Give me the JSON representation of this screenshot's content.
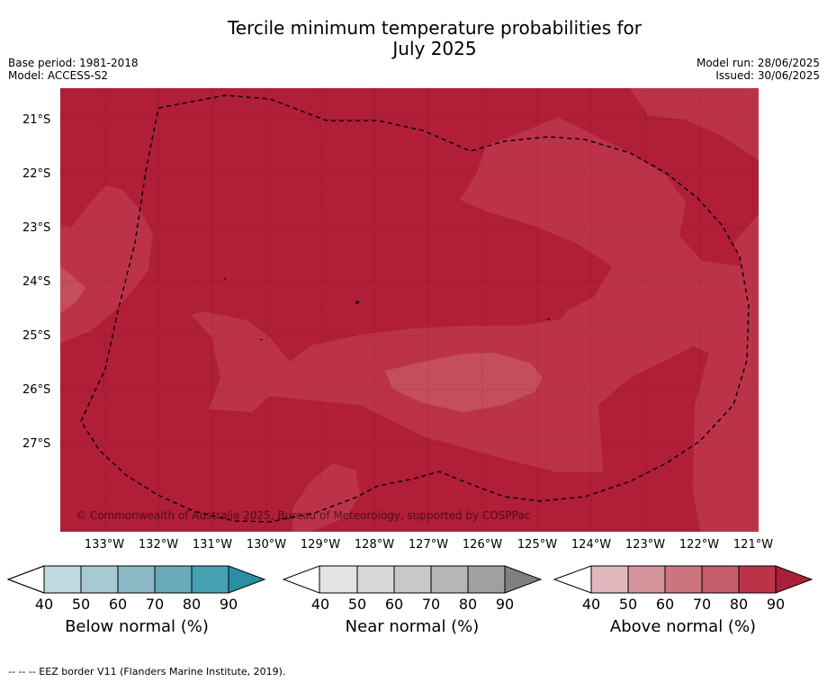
{
  "title_line1": "Tercile minimum temperature probabilities for",
  "title_line2": "July 2025",
  "base_period": "Base period: 1981-2018",
  "model": "Model: ACCESS-S2",
  "model_run": "Model run: 28/06/2025",
  "issued": "Issued: 30/06/2025",
  "map": {
    "latitude_labels": [
      "21°S",
      "22°S",
      "23°S",
      "24°S",
      "25°S",
      "26°S",
      "27°S"
    ],
    "longitude_labels": [
      "133°W",
      "132°W",
      "131°W",
      "130°W",
      "129°W",
      "128°W",
      "127°W",
      "126°W",
      "125°W",
      "124°W",
      "123°W",
      "122°W",
      "121°W"
    ],
    "copyright": "© Commonwealth of Australia 2025, Bureau of Meteorology, supported by COSPPac",
    "colors": {
      "above_80_90": "#b01e37",
      "above_70_80": "#bc3349",
      "above_60_70": "#c44d5e"
    }
  },
  "colorbars": [
    {
      "title": "Below normal (%)",
      "ticks": [
        "40",
        "50",
        "60",
        "70",
        "80",
        "90"
      ],
      "colors": [
        "#c0d8de",
        "#a7c9d1",
        "#8ab8c5",
        "#6aaaba",
        "#46a0b2",
        "#2a8fa4"
      ]
    },
    {
      "title": "Near normal (%)",
      "ticks": [
        "40",
        "50",
        "60",
        "70",
        "80",
        "90"
      ],
      "colors": [
        "#e4e4e4",
        "#d8d8d8",
        "#c8c8c8",
        "#b6b6b6",
        "#a0a0a0",
        "#7f7f7f"
      ]
    },
    {
      "title": "Above normal (%)",
      "ticks": [
        "40",
        "50",
        "60",
        "70",
        "80",
        "90"
      ],
      "colors": [
        "#e1b7bd",
        "#d5949c",
        "#cd757f",
        "#c45c69",
        "#bc3349",
        "#a8203a"
      ]
    }
  ],
  "footer": "--  --  -- EEZ border V11 (Flanders Marine Institute, 2019)."
}
